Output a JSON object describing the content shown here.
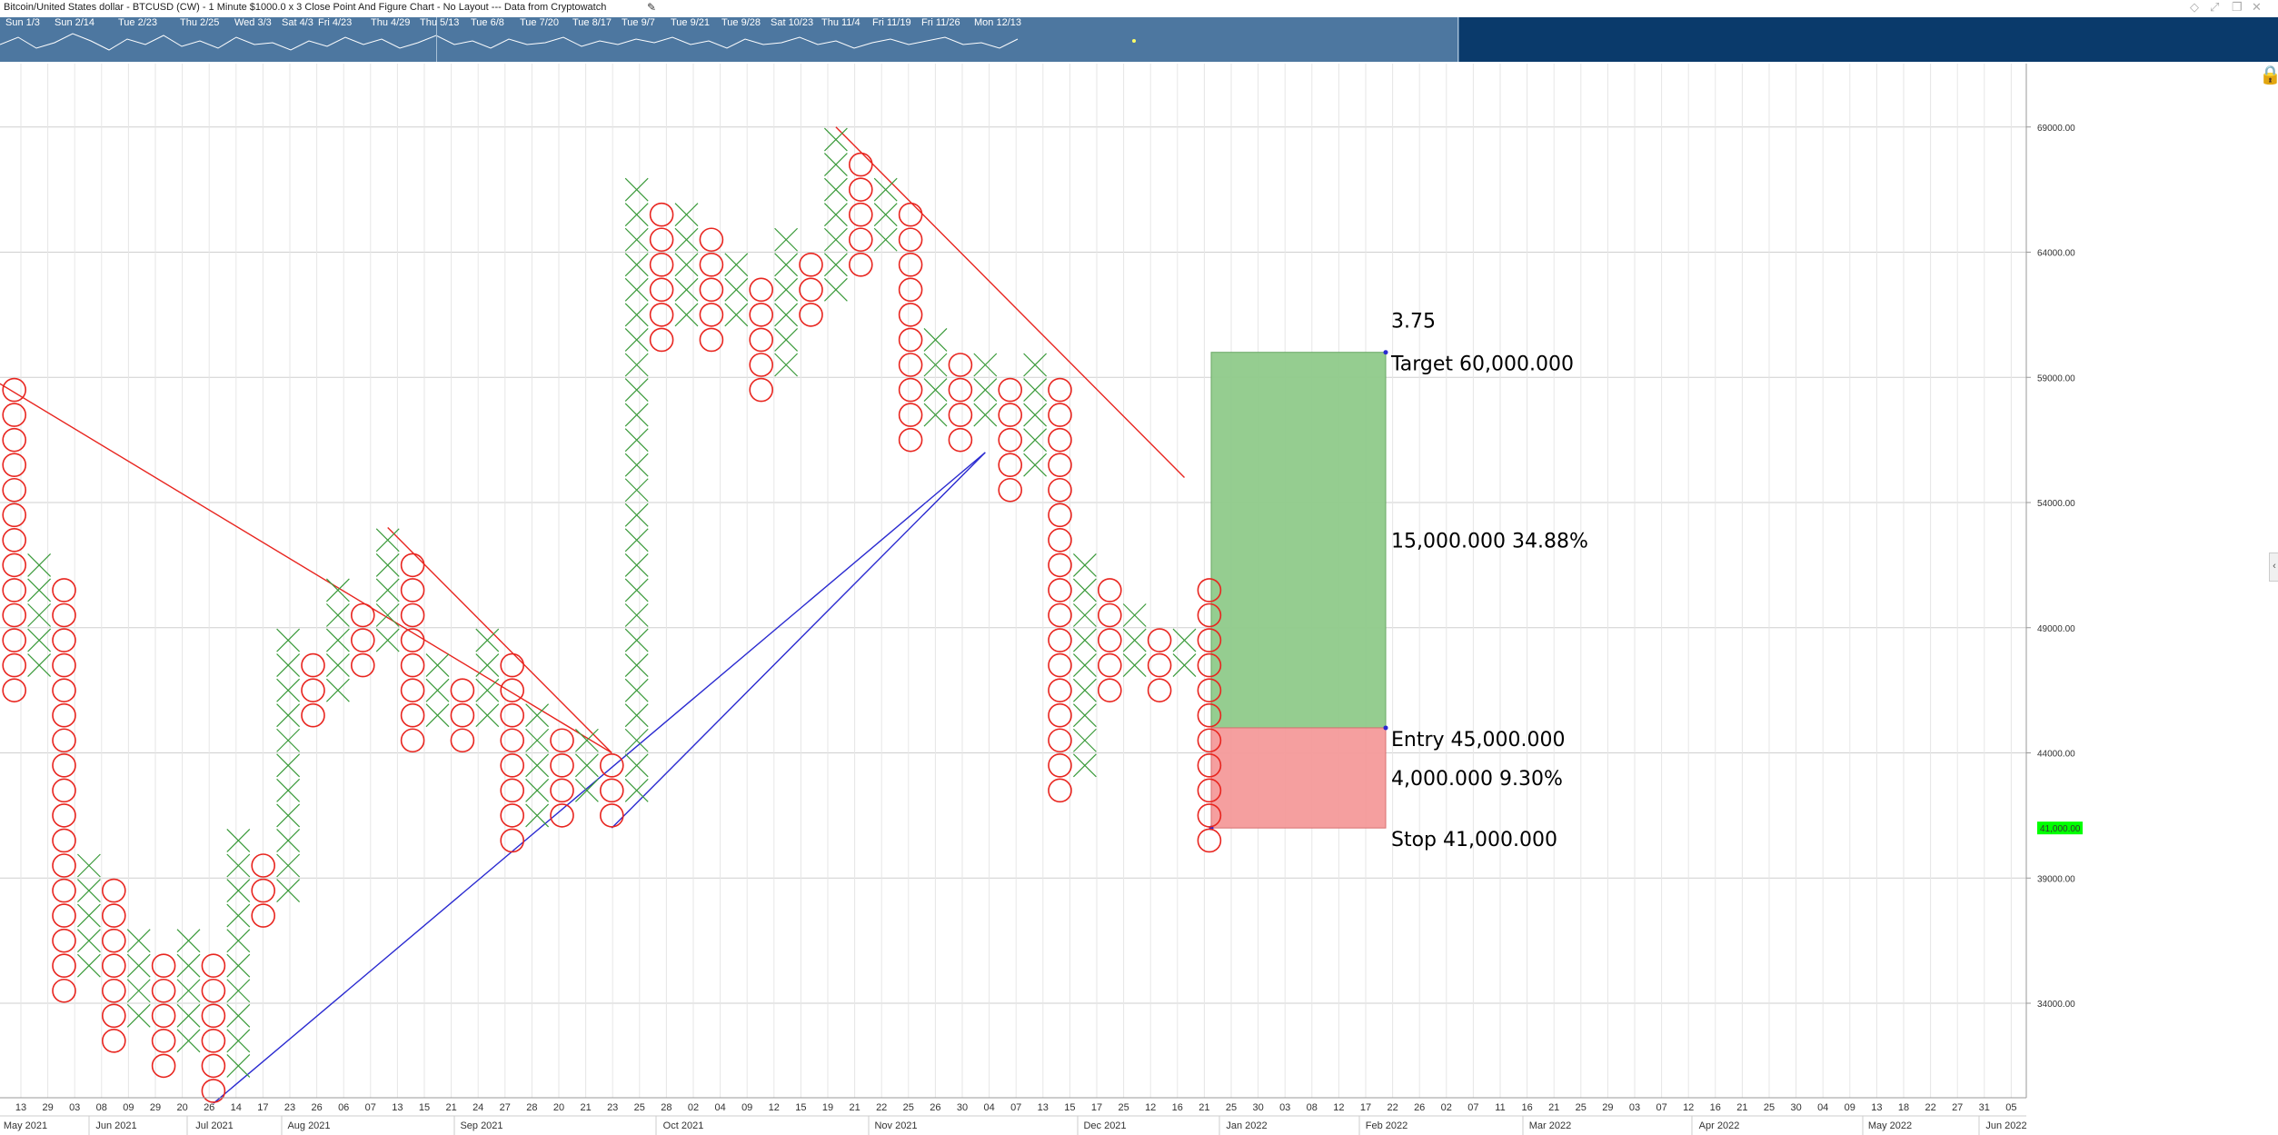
{
  "window": {
    "title": "Bitcoin/United States dollar - BTCUSD (CW) - 1 Minute $1000.0 x 3 Close Point And Figure Chart - No Layout --- Data from Cryptowatch"
  },
  "overview": {
    "labels": [
      "Sun 1/3",
      "Sun 2/14",
      "Tue 2/23",
      "Thu 2/25",
      "Wed 3/3",
      "Sat 4/3",
      "Fri 4/23",
      "Thu 4/29",
      "Thu 5/13",
      "Tue 6/8",
      "Tue 7/20",
      "Tue 8/17",
      "Tue 9/7",
      "Tue 9/21",
      "Tue 9/28",
      "Sat 10/23",
      "Thu 11/4",
      "Fri 11/19",
      "Fri 11/26",
      "Mon 12/13"
    ]
  },
  "colors": {
    "x_mark": "#3a9a3a",
    "o_mark": "#e8251f",
    "resistance_line": "#e8251f",
    "support_line": "#2a2ad0",
    "target_zone": "#8fca8a",
    "stop_zone": "#f49a9a",
    "price_badge": "#00ff00",
    "ratio_text": "#1a8a1a"
  },
  "chart_data": {
    "type": "point-and-figure",
    "box_size": 1000,
    "reversal": 3,
    "ylim": [
      30000,
      70000
    ],
    "y_ticks": [
      "69000.00",
      "64000.00",
      "59000.00",
      "54000.00",
      "49000.00",
      "44000.00",
      "39000.00",
      "34000.00"
    ],
    "current_price": "41,000.00",
    "columns": [
      {
        "type": "O",
        "high": 59,
        "low": 47
      },
      {
        "type": "X",
        "high": 52,
        "low": 48
      },
      {
        "type": "O",
        "high": 51,
        "low": 35
      },
      {
        "type": "X",
        "high": 40,
        "low": 36
      },
      {
        "type": "O",
        "high": 39,
        "low": 33
      },
      {
        "type": "X",
        "high": 37,
        "low": 34
      },
      {
        "type": "O",
        "high": 36,
        "low": 32
      },
      {
        "type": "X",
        "high": 37,
        "low": 33
      },
      {
        "type": "O",
        "high": 36,
        "low": 31
      },
      {
        "type": "X",
        "high": 41,
        "low": 32
      },
      {
        "type": "O",
        "high": 40,
        "low": 38
      },
      {
        "type": "X",
        "high": 49,
        "low": 39
      },
      {
        "type": "O",
        "high": 48,
        "low": 46
      },
      {
        "type": "X",
        "high": 51,
        "low": 47
      },
      {
        "type": "O",
        "high": 50,
        "low": 48
      },
      {
        "type": "X",
        "high": 53,
        "low": 49
      },
      {
        "type": "O",
        "high": 52,
        "low": 45
      },
      {
        "type": "X",
        "high": 48,
        "low": 46
      },
      {
        "type": "O",
        "high": 47,
        "low": 45
      },
      {
        "type": "X",
        "high": 49,
        "low": 46
      },
      {
        "type": "O",
        "high": 48,
        "low": 41
      },
      {
        "type": "X",
        "high": 46,
        "low": 42
      },
      {
        "type": "O",
        "high": 45,
        "low": 42
      },
      {
        "type": "X",
        "high": 45,
        "low": 43
      },
      {
        "type": "O",
        "high": 44,
        "low": 42
      },
      {
        "type": "X",
        "high": 67,
        "low": 43
      },
      {
        "type": "O",
        "high": 66,
        "low": 61
      },
      {
        "type": "X",
        "high": 66,
        "low": 62
      },
      {
        "type": "O",
        "high": 65,
        "low": 61
      },
      {
        "type": "X",
        "high": 64,
        "low": 62
      },
      {
        "type": "O",
        "high": 63,
        "low": 59
      },
      {
        "type": "X",
        "high": 65,
        "low": 60
      },
      {
        "type": "O",
        "high": 64,
        "low": 62
      },
      {
        "type": "X",
        "high": 69,
        "low": 63
      },
      {
        "type": "O",
        "high": 68,
        "low": 64
      },
      {
        "type": "X",
        "high": 67,
        "low": 65
      },
      {
        "type": "O",
        "high": 66,
        "low": 57
      },
      {
        "type": "X",
        "high": 61,
        "low": 58
      },
      {
        "type": "O",
        "high": 60,
        "low": 57
      },
      {
        "type": "X",
        "high": 60,
        "low": 58
      },
      {
        "type": "O",
        "high": 59,
        "low": 55
      },
      {
        "type": "X",
        "high": 60,
        "low": 56
      },
      {
        "type": "O",
        "high": 59,
        "low": 43
      },
      {
        "type": "X",
        "high": 52,
        "low": 44
      },
      {
        "type": "O",
        "high": 51,
        "low": 47
      },
      {
        "type": "X",
        "high": 50,
        "low": 48
      },
      {
        "type": "O",
        "high": 49,
        "low": 47
      },
      {
        "type": "X",
        "high": 49,
        "low": 48
      },
      {
        "type": "O",
        "high": 51,
        "low": 41
      }
    ],
    "trendlines": [
      {
        "kind": "resistance",
        "from": {
          "col": -0.5,
          "price": 59
        },
        "to": {
          "col": 24.5,
          "price": 44
        }
      },
      {
        "kind": "resistance",
        "from": {
          "col": 15.5,
          "price": 53
        },
        "to": {
          "col": 24.5,
          "price": 44
        }
      },
      {
        "kind": "resistance",
        "from": {
          "col": 33.5,
          "price": 69
        },
        "to": {
          "col": 47.5,
          "price": 55
        }
      },
      {
        "kind": "support",
        "from": {
          "col": 8.5,
          "price": 30
        },
        "to": {
          "col": 39.5,
          "price": 56
        }
      },
      {
        "kind": "support",
        "from": {
          "col": 24.5,
          "price": 41
        },
        "to": {
          "col": 39.5,
          "price": 56
        }
      }
    ],
    "trade": {
      "target": "60,000.000",
      "entry": "45,000.000",
      "stop": "41,000.000",
      "reward": "15,000.000",
      "reward_pct": "34.88%",
      "risk": "4,000.000",
      "risk_pct": "9.30%",
      "ratio": "3.75",
      "target_label": "Target",
      "entry_label": "Entry",
      "stop_label": "Stop"
    },
    "x_day_ticks": [
      "13",
      "29",
      "03",
      "08",
      "09",
      "29",
      "20",
      "26",
      "14",
      "17",
      "23",
      "26",
      "06",
      "07",
      "13",
      "15",
      "21",
      "24",
      "27",
      "28",
      "20",
      "21",
      "23",
      "25",
      "28",
      "02",
      "04",
      "09",
      "12",
      "15",
      "19",
      "21",
      "22",
      "25",
      "26",
      "30",
      "04",
      "07",
      "13",
      "15",
      "17",
      "25",
      "12",
      "16",
      "21",
      "25",
      "30",
      "03",
      "08",
      "12",
      "17",
      "22",
      "26",
      "02",
      "07",
      "11",
      "16",
      "21",
      "25",
      "29",
      "03",
      "07",
      "12",
      "16",
      "21",
      "25",
      "30",
      "04",
      "09",
      "13",
      "18",
      "22",
      "27",
      "31",
      "05"
    ],
    "x_month_ticks": [
      "May 2021",
      "Jun 2021",
      "Jul 2021",
      "Aug 2021",
      "Sep 2021",
      "Oct 2021",
      "Nov 2021",
      "Dec 2021",
      "Jan 2022",
      "Feb 2022",
      "Mar 2022",
      "Apr 2022",
      "May 2022",
      "Jun 2022"
    ]
  }
}
